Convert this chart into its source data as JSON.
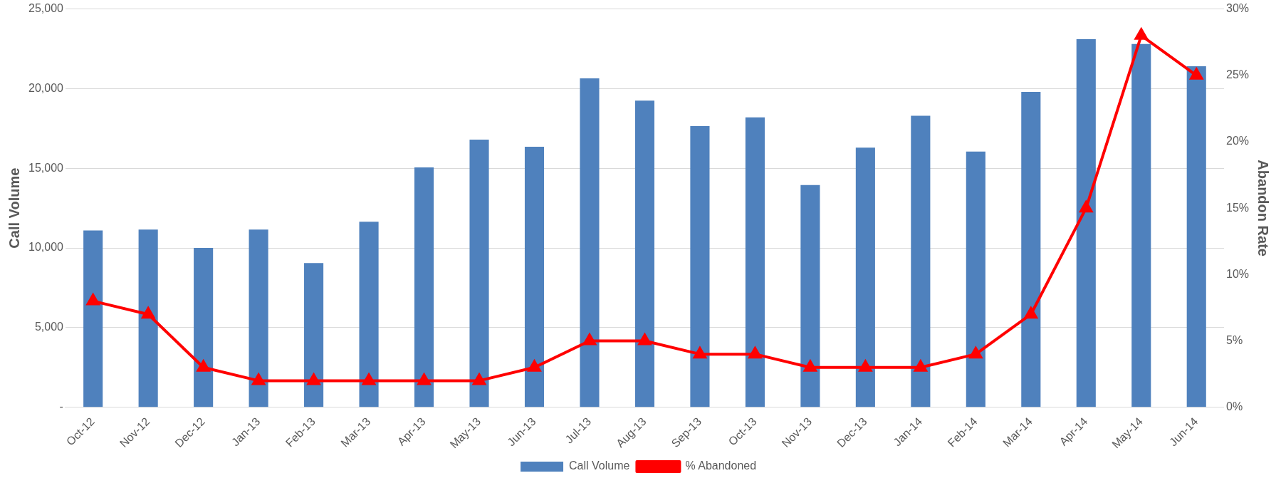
{
  "chart_data": {
    "type": "bar",
    "ylabel": "Call Volume",
    "y2label": "Abandon Rate",
    "categories": [
      "Oct-12",
      "Nov-12",
      "Dec-12",
      "Jan-13",
      "Feb-13",
      "Mar-13",
      "Apr-13",
      "May-13",
      "Jun-13",
      "Jul-13",
      "Aug-13",
      "Sep-13",
      "Oct-13",
      "Nov-13",
      "Dec-13",
      "Jan-14",
      "Feb-14",
      "Mar-14",
      "Apr-14",
      "May-14",
      "Jun-14"
    ],
    "series": [
      {
        "name": "Call Volume",
        "color": "#4f81bd",
        "values": [
          11100,
          11150,
          10000,
          11150,
          9050,
          11650,
          15050,
          16800,
          16350,
          20650,
          19250,
          17650,
          18200,
          13950,
          16300,
          18300,
          16050,
          19800,
          23100,
          22800,
          21400
        ]
      },
      {
        "name": "% Abandoned",
        "type": "line",
        "axis": "y2",
        "color": "#ff0000",
        "marker": "triangle",
        "values": [
          8,
          7,
          3,
          2,
          2,
          2,
          2,
          2,
          3,
          5,
          5,
          4,
          4,
          3,
          3,
          3,
          4,
          7,
          15,
          28,
          25
        ]
      }
    ],
    "ylim": [
      0,
      25000
    ],
    "yticks": [
      {
        "value": 0,
        "label": "-"
      },
      {
        "value": 5000,
        "label": "5,000"
      },
      {
        "value": 10000,
        "label": "10,000"
      },
      {
        "value": 15000,
        "label": "15,000"
      },
      {
        "value": 20000,
        "label": "20,000"
      },
      {
        "value": 25000,
        "label": "25,000"
      }
    ],
    "y2lim": [
      0,
      30
    ],
    "y2ticks": [
      {
        "value": 0,
        "label": "0%"
      },
      {
        "value": 5,
        "label": "5%"
      },
      {
        "value": 10,
        "label": "10%"
      },
      {
        "value": 15,
        "label": "15%"
      },
      {
        "value": 20,
        "label": "20%"
      },
      {
        "value": 25,
        "label": "25%"
      },
      {
        "value": 30,
        "label": "30%"
      }
    ],
    "grid": "y",
    "legend": "bottom"
  }
}
